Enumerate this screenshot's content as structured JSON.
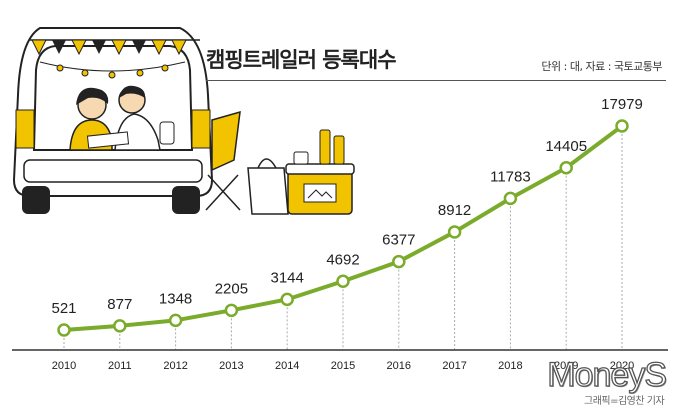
{
  "title": "캠핑트레일러 등록대수",
  "source": "단위 : 대, 자료 : 국토교통부",
  "credit": "그래픽=김영찬 기자",
  "watermark": "MoneyS",
  "colors": {
    "line": "#7aab2b",
    "accent_yellow": "#f2c400",
    "axis": "#333333",
    "dash": "#aaaaaa"
  },
  "chart_data": {
    "type": "line",
    "title": "캠핑트레일러 등록대수",
    "xlabel": "",
    "ylabel": "",
    "unit": "대",
    "categories": [
      "2010",
      "2011",
      "2012",
      "2013",
      "2014",
      "2015",
      "2016",
      "2017",
      "2018",
      "2019",
      "2020"
    ],
    "values": [
      521,
      877,
      1348,
      2205,
      3144,
      4692,
      6377,
      8912,
      11783,
      14405,
      17979
    ],
    "labels": [
      "521",
      "877",
      "1348",
      "2205",
      "3144",
      "4692",
      "6377",
      "8912",
      "11783",
      "14405",
      "17979"
    ],
    "ylim": [
      0,
      18500
    ],
    "grid": false,
    "legend": "none"
  }
}
